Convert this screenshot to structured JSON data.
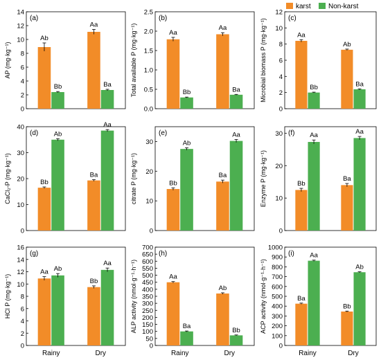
{
  "legend": {
    "placement": "top-right",
    "items": [
      {
        "label": "karst",
        "color": "#F28C28"
      },
      {
        "label": "Non-karst",
        "color": "#4CAF50"
      }
    ]
  },
  "chart_data": [
    {
      "type": "bar",
      "panel_label": "(a)",
      "ylabel": "AP (mg·kg⁻¹)",
      "categories": [
        "Rainy",
        "Dry"
      ],
      "ylim": [
        0,
        14
      ],
      "yticks": [
        0,
        2,
        4,
        6,
        8,
        10,
        12,
        14
      ],
      "series": [
        {
          "name": "karst",
          "values": [
            8.9,
            11.1
          ],
          "errors": [
            0.6,
            0.35
          ],
          "labels": [
            "Ab",
            "Aa"
          ]
        },
        {
          "name": "Non-karst",
          "values": [
            2.4,
            2.7
          ],
          "errors": [
            0.08,
            0.1
          ],
          "labels": [
            "Bb",
            "Ba"
          ]
        }
      ],
      "show_x_labels": false
    },
    {
      "type": "bar",
      "panel_label": "(b)",
      "ylabel": "Total available P (mg·kg⁻¹)",
      "categories": [
        "Rainy",
        "Dry"
      ],
      "ylim": [
        0,
        2.5
      ],
      "yticks": [
        0.0,
        0.5,
        1.0,
        1.5,
        2.0,
        2.5
      ],
      "series": [
        {
          "name": "karst",
          "values": [
            1.79,
            1.92
          ],
          "errors": [
            0.05,
            0.04
          ],
          "labels": [
            "Aa",
            "Aa"
          ]
        },
        {
          "name": "Non-karst",
          "values": [
            0.29,
            0.36
          ],
          "errors": [
            0.01,
            0.01
          ],
          "labels": [
            "Bb",
            "Ba"
          ]
        }
      ],
      "show_x_labels": false
    },
    {
      "type": "bar",
      "panel_label": "(c)",
      "ylabel": "Microbial biomass P (mg·kg⁻¹)",
      "categories": [
        "Rainy",
        "Dry"
      ],
      "ylim": [
        0,
        12
      ],
      "yticks": [
        0,
        2,
        4,
        6,
        8,
        10,
        12
      ],
      "series": [
        {
          "name": "karst",
          "values": [
            8.4,
            7.3
          ],
          "errors": [
            0.15,
            0.08
          ],
          "labels": [
            "Aa",
            "Ab"
          ]
        },
        {
          "name": "Non-karst",
          "values": [
            2.0,
            2.4
          ],
          "errors": [
            0.05,
            0.06
          ],
          "labels": [
            "Bb",
            "Ba"
          ]
        }
      ],
      "show_x_labels": false
    },
    {
      "type": "bar",
      "panel_label": "(d)",
      "ylabel": "CaCl₂-P (mg·kg⁻¹)",
      "categories": [
        "Rainy",
        "Dry"
      ],
      "ylim": [
        0,
        40
      ],
      "yticks": [
        0,
        10,
        20,
        30,
        40
      ],
      "series": [
        {
          "name": "karst",
          "values": [
            16.5,
            19.3
          ],
          "errors": [
            0.3,
            0.3
          ],
          "labels": [
            "Bb",
            "Ba"
          ]
        },
        {
          "name": "Non-karst",
          "values": [
            35.0,
            38.5
          ],
          "errors": [
            0.4,
            0.4
          ],
          "labels": [
            "Ab",
            "Aa"
          ]
        }
      ],
      "show_x_labels": false
    },
    {
      "type": "bar",
      "panel_label": "(e)",
      "ylabel": "citrate P (mg·kg⁻¹)",
      "categories": [
        "Rainy",
        "Dry"
      ],
      "ylim": [
        0,
        35
      ],
      "yticks": [
        0,
        10,
        20,
        30
      ],
      "series": [
        {
          "name": "karst",
          "values": [
            14.0,
            16.5
          ],
          "errors": [
            0.4,
            0.5
          ],
          "labels": [
            "Bb",
            "Ba"
          ]
        },
        {
          "name": "Non-karst",
          "values": [
            27.5,
            30.2
          ],
          "errors": [
            0.4,
            0.5
          ],
          "labels": [
            "Ab",
            "Aa"
          ]
        }
      ],
      "show_x_labels": false
    },
    {
      "type": "bar",
      "panel_label": "(f)",
      "ylabel": "Enzyme P (mg·kg⁻¹)",
      "categories": [
        "Rainy",
        "Dry"
      ],
      "ylim": [
        0,
        32
      ],
      "yticks": [
        0,
        10,
        20,
        30
      ],
      "series": [
        {
          "name": "karst",
          "values": [
            12.5,
            14.0
          ],
          "errors": [
            0.5,
            0.5
          ],
          "labels": [
            "Bb",
            "Ba"
          ]
        },
        {
          "name": "Non-karst",
          "values": [
            27.3,
            28.5
          ],
          "errors": [
            0.6,
            0.5
          ],
          "labels": [
            "Aa",
            "Aa"
          ]
        }
      ],
      "show_x_labels": false
    },
    {
      "type": "bar",
      "panel_label": "(g)",
      "ylabel": "HCl P (mg·kg⁻¹)",
      "categories": [
        "Rainy",
        "Dry"
      ],
      "ylim": [
        0,
        16
      ],
      "yticks": [
        0,
        2,
        4,
        6,
        8,
        10,
        12,
        14,
        16
      ],
      "series": [
        {
          "name": "karst",
          "values": [
            10.9,
            9.5
          ],
          "errors": [
            0.3,
            0.2
          ],
          "labels": [
            "Aa",
            "Bb"
          ]
        },
        {
          "name": "Non-karst",
          "values": [
            11.4,
            12.3
          ],
          "errors": [
            0.3,
            0.3
          ],
          "labels": [
            "Ab",
            "Aa"
          ]
        }
      ],
      "show_x_labels": true
    },
    {
      "type": "bar",
      "panel_label": "(h)",
      "ylabel": "ALP activity (nmol·g⁻¹·h⁻¹)",
      "categories": [
        "Rainy",
        "Dry"
      ],
      "ylim": [
        0,
        700
      ],
      "yticks": [
        0,
        50,
        100,
        150,
        200,
        250,
        300,
        350,
        400,
        450,
        500,
        550,
        600,
        650,
        700
      ],
      "series": [
        {
          "name": "karst",
          "values": [
            450,
            370
          ],
          "errors": [
            5,
            5
          ],
          "labels": [
            "Aa",
            "Ab"
          ]
        },
        {
          "name": "Non-karst",
          "values": [
            100,
            72
          ],
          "errors": [
            3,
            3
          ],
          "labels": [
            "Ba",
            "Bb"
          ]
        }
      ],
      "show_x_labels": true
    },
    {
      "type": "bar",
      "panel_label": "(i)",
      "ylabel": "ACP activity (nmol·g⁻¹·h⁻¹)",
      "categories": [
        "Rainy",
        "Dry"
      ],
      "ylim": [
        0,
        1000
      ],
      "yticks": [
        0,
        100,
        200,
        300,
        400,
        500,
        600,
        700,
        800,
        900,
        1000
      ],
      "series": [
        {
          "name": "karst",
          "values": [
            425,
            345
          ],
          "errors": [
            6,
            5
          ],
          "labels": [
            "Ba",
            "Bb"
          ]
        },
        {
          "name": "Non-karst",
          "values": [
            862,
            745
          ],
          "errors": [
            6,
            5
          ],
          "labels": [
            "Aa",
            "Ab"
          ]
        }
      ],
      "show_x_labels": true
    }
  ]
}
